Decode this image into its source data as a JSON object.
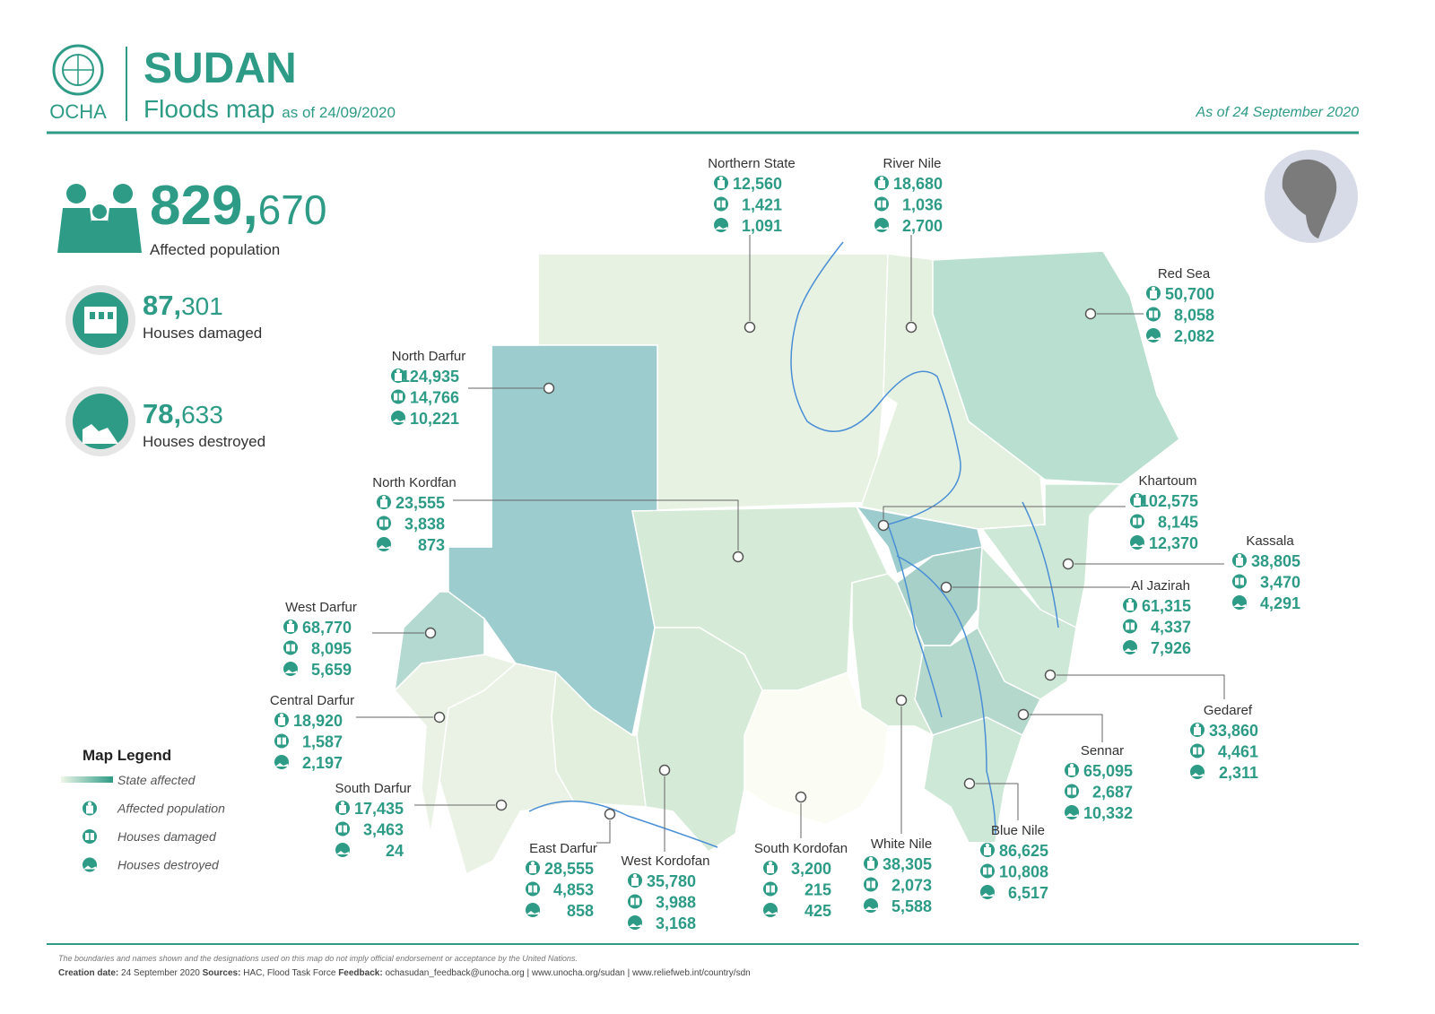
{
  "header": {
    "logo_text": "OCHA",
    "title": "SUDAN",
    "subtitle": "Floods map",
    "subtitle_date": "as of 24/09/2020",
    "date": "As of 24 September 2020"
  },
  "summary": [
    {
      "major": "829,",
      "minor": "670",
      "label": "Affected population"
    },
    {
      "major": "87,",
      "minor": "301",
      "label": "Houses damaged"
    },
    {
      "major": "78,",
      "minor": "633",
      "label": "Houses destroyed"
    }
  ],
  "states": [
    {
      "name": "Northern State",
      "affected": "12,560",
      "damaged": "1,421",
      "destroyed": "1,091"
    },
    {
      "name": "River Nile",
      "affected": "18,680",
      "damaged": "1,036",
      "destroyed": "2,700"
    },
    {
      "name": "Red Sea",
      "affected": "50,700",
      "damaged": "8,058",
      "destroyed": "2,082"
    },
    {
      "name": "North Darfur",
      "affected": "124,935",
      "damaged": "14,766",
      "destroyed": "10,221"
    },
    {
      "name": "North Kordfan",
      "affected": "23,555",
      "damaged": "3,838",
      "destroyed": "873"
    },
    {
      "name": "West Darfur",
      "affected": "68,770",
      "damaged": "8,095",
      "destroyed": "5,659"
    },
    {
      "name": "Central Darfur",
      "affected": "18,920",
      "damaged": "1,587",
      "destroyed": "2,197"
    },
    {
      "name": "South Darfur",
      "affected": "17,435",
      "damaged": "3,463",
      "destroyed": "24"
    },
    {
      "name": "East Darfur",
      "affected": "28,555",
      "damaged": "4,853",
      "destroyed": "858"
    },
    {
      "name": "West Kordofan",
      "affected": "35,780",
      "damaged": "3,988",
      "destroyed": "3,168"
    },
    {
      "name": "South Kordofan",
      "affected": "3,200",
      "damaged": "215",
      "destroyed": "425"
    },
    {
      "name": "White Nile",
      "affected": "38,305",
      "damaged": "2,073",
      "destroyed": "5,588"
    },
    {
      "name": "Blue Nile",
      "affected": "86,625",
      "damaged": "10,808",
      "destroyed": "6,517"
    },
    {
      "name": "Sennar",
      "affected": "65,095",
      "damaged": "2,687",
      "destroyed": "10,332"
    },
    {
      "name": "Gedaref",
      "affected": "33,860",
      "damaged": "4,461",
      "destroyed": "2,311"
    },
    {
      "name": "Al Jazirah",
      "affected": "61,315",
      "damaged": "4,337",
      "destroyed": "7,926"
    },
    {
      "name": "Kassala",
      "affected": "38,805",
      "damaged": "3,470",
      "destroyed": "4,291"
    },
    {
      "name": "Khartoum",
      "affected": "102,575",
      "damaged": "8,145",
      "destroyed": "12,370"
    }
  ],
  "legend": {
    "title": "Map Legend",
    "items": [
      "State affected",
      "Affected population",
      "Houses damaged",
      "Houses destroyed"
    ]
  },
  "footer": {
    "disclaimer": "The boundaries and names shown and the designations used on this map do not imply official endorsement or acceptance by the United Nations.",
    "creation_label": "Creation date:",
    "creation_date": "24 September 2020",
    "sources_label": "Sources:",
    "sources": "HAC, Flood Task Force",
    "feedback_label": "Feedback:",
    "feedback": "ochasudan_feedback@unocha.org | www.unocha.org/sudan | www.reliefweb.int/country/sdn"
  }
}
